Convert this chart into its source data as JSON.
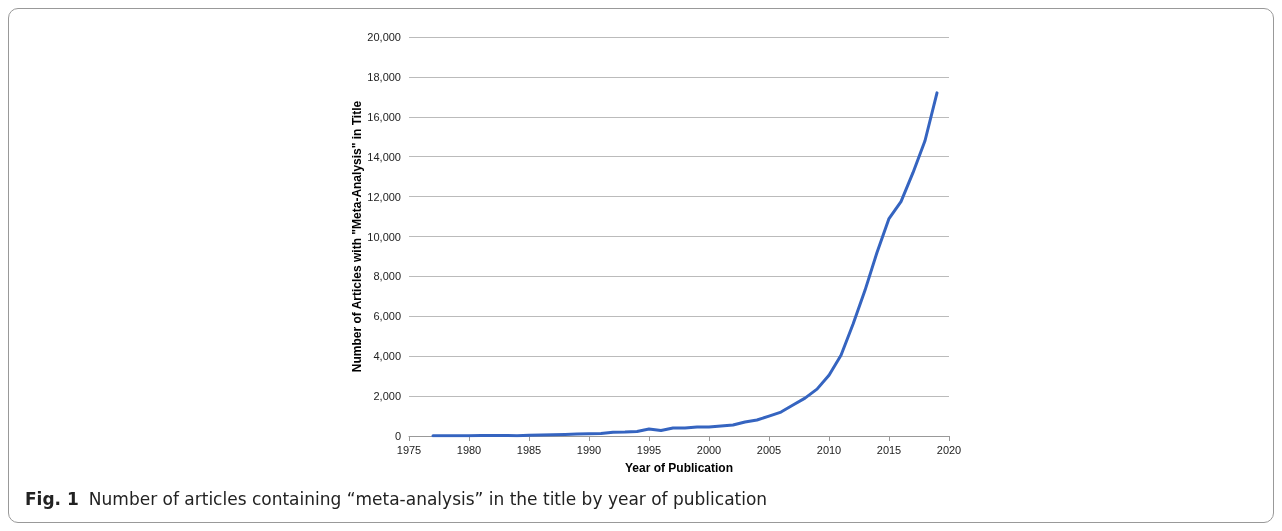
{
  "chart_data": {
    "type": "line",
    "xlabel": "Year of Publication",
    "ylabel": "Number of Articles with \"Meta-Analysis\" in Title",
    "x": [
      1977,
      1978,
      1979,
      1980,
      1981,
      1982,
      1983,
      1984,
      1985,
      1986,
      1987,
      1988,
      1989,
      1990,
      1991,
      1992,
      1993,
      1994,
      1995,
      1996,
      1997,
      1998,
      1999,
      2000,
      2001,
      2002,
      2003,
      2004,
      2005,
      2006,
      2007,
      2008,
      2009,
      2010,
      2011,
      2012,
      2013,
      2014,
      2015,
      2016,
      2017,
      2018,
      2019
    ],
    "series": [
      {
        "color": "#3564c0",
        "values": [
          10,
          10,
          10,
          10,
          20,
          30,
          30,
          10,
          40,
          50,
          60,
          80,
          100,
          110,
          130,
          190,
          200,
          230,
          350,
          280,
          400,
          400,
          450,
          450,
          500,
          550,
          700,
          800,
          1000,
          1200,
          1550,
          1900,
          2350,
          3050,
          4050,
          5600,
          7300,
          9200,
          10900,
          11750,
          13200,
          14800,
          17200
        ]
      }
    ],
    "xlim": [
      1975,
      2020
    ],
    "xticks": [
      1975,
      1980,
      1985,
      1990,
      1995,
      2000,
      2005,
      2010,
      2015,
      2020
    ],
    "ylim": [
      0,
      20000
    ],
    "yticks": [
      {
        "value": 0,
        "label": "0"
      },
      {
        "value": 2000,
        "label": "2,000"
      },
      {
        "value": 4000,
        "label": "4,000"
      },
      {
        "value": 6000,
        "label": "6,000"
      },
      {
        "value": 8000,
        "label": "8,000"
      },
      {
        "value": 10000,
        "label": "10,000"
      },
      {
        "value": 12000,
        "label": "12,000"
      },
      {
        "value": 14000,
        "label": "14,000"
      },
      {
        "value": 16000,
        "label": "16,000"
      },
      {
        "value": 18000,
        "label": "18,000"
      },
      {
        "value": 20000,
        "label": "20,000"
      }
    ],
    "grid": "y",
    "marker": "none",
    "line_style": "solid",
    "annotations": [
      "Fig. 1",
      "Number of articles containing “meta-analysis” in the title by year of publication"
    ]
  }
}
